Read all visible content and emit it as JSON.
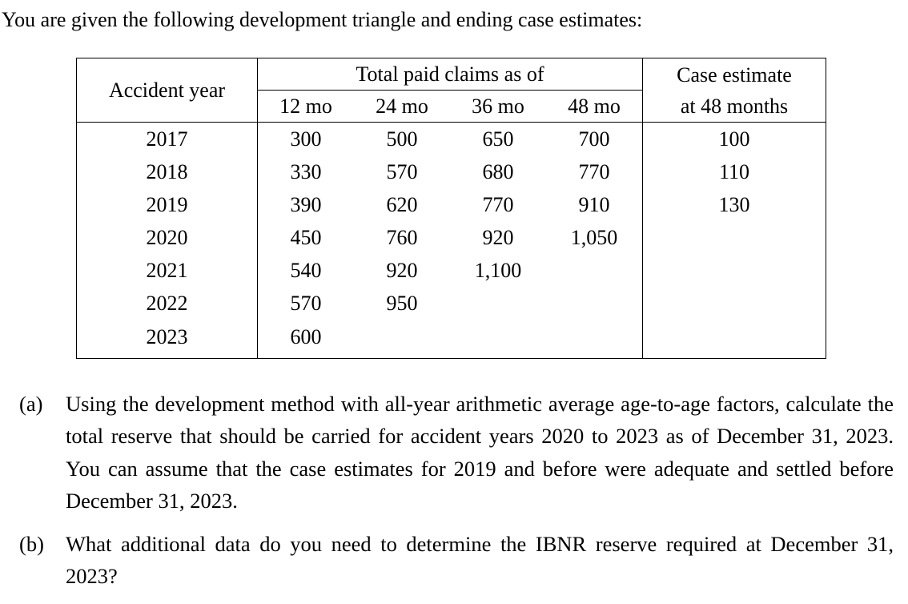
{
  "intro": "You are given the following development triangle and ending case estimates:",
  "table": {
    "accident_year_header": "Accident year",
    "paid_claims_header": "Total paid claims as of",
    "case_header_line1": "Case estimate",
    "case_header_line2": "at 48 months",
    "month_headers": [
      "12 mo",
      "24 mo",
      "36 mo",
      "48 mo"
    ],
    "rows": [
      {
        "year": "2017",
        "values": [
          "300",
          "500",
          "650",
          "700"
        ],
        "case_estimate": "100"
      },
      {
        "year": "2018",
        "values": [
          "330",
          "570",
          "680",
          "770"
        ],
        "case_estimate": "110"
      },
      {
        "year": "2019",
        "values": [
          "390",
          "620",
          "770",
          "910"
        ],
        "case_estimate": "130"
      },
      {
        "year": "2020",
        "values": [
          "450",
          "760",
          "920",
          "1,050"
        ]
      },
      {
        "year": "2021",
        "values": [
          "540",
          "920",
          "1,100"
        ]
      },
      {
        "year": "2022",
        "values": [
          "570",
          "950"
        ]
      },
      {
        "year": "2023",
        "values": [
          "600"
        ]
      }
    ]
  },
  "questions": [
    {
      "label": "(a)",
      "text": "Using the development method with all-year arithmetic average age-to-age factors, calculate the total reserve that should be carried for accident years 2020 to 2023 as of December 31, 2023. You can assume that the case estimates for 2019 and before were adequate and settled before December 31, 2023."
    },
    {
      "label": "(b)",
      "text": "What additional data do you need to determine the IBNR reserve required at December 31, 2023?"
    }
  ]
}
